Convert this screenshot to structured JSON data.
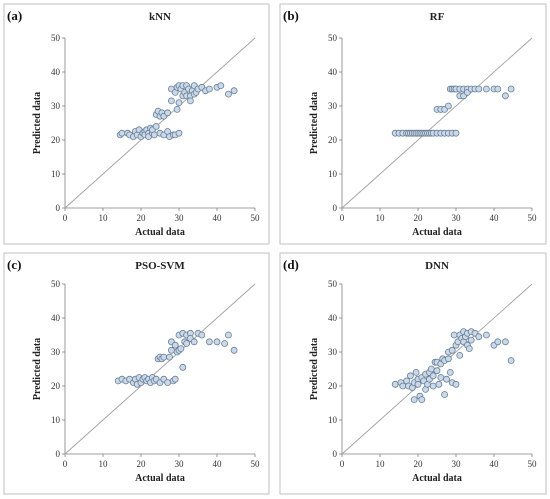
{
  "figure": {
    "background": "#ffffff"
  },
  "style": {
    "marker_fill": "#c9d9ea",
    "marker_stroke": "#6b7f95",
    "diagonal_color": "#a0a0a0",
    "axis_color": "#808080"
  },
  "chart_data": [
    {
      "panel_label": "(a)",
      "type": "scatter",
      "title": "kNN",
      "xlabel": "Actual data",
      "ylabel": "Predicted data",
      "xlim": [
        0,
        50
      ],
      "ylim": [
        0,
        50
      ],
      "xticks": [
        0,
        10,
        20,
        30,
        40,
        50
      ],
      "yticks": [
        0,
        10,
        20,
        30,
        40,
        50
      ],
      "grid": false,
      "reference_line": "y = x",
      "x": [
        14.5,
        15,
        16.5,
        17,
        18,
        18.5,
        19,
        19.5,
        20,
        20.5,
        21,
        21,
        21.5,
        22,
        22,
        22.5,
        23,
        23,
        23.5,
        24,
        24,
        24.5,
        25,
        25,
        25.5,
        26,
        26,
        27,
        27,
        27.5,
        28,
        28,
        28.5,
        29,
        29,
        29.5,
        29.5,
        30,
        30,
        30,
        30.5,
        31,
        31,
        31.5,
        32,
        32,
        32.5,
        33,
        33,
        33.5,
        34,
        34,
        34.5,
        35,
        36,
        37,
        38,
        40,
        41,
        43,
        44.5
      ],
      "y": [
        21.5,
        22,
        22,
        21.5,
        21,
        22.5,
        21.5,
        23,
        21,
        22,
        22.5,
        21.5,
        23,
        22,
        21,
        23.5,
        22,
        23,
        21.5,
        24,
        27.5,
        28.5,
        22,
        27,
        28,
        21.5,
        27,
        22.5,
        28,
        21,
        31.5,
        35,
        21.5,
        34,
        21.5,
        35.5,
        29,
        36,
        22,
        31,
        35,
        33,
        36,
        34,
        36,
        33,
        35,
        33,
        31.5,
        34.5,
        36,
        33.5,
        34,
        35,
        35.5,
        34.5,
        35,
        35.5,
        36,
        33.5,
        34.5
      ]
    },
    {
      "panel_label": "(b)",
      "type": "scatter",
      "title": "RF",
      "xlabel": "Actual data",
      "ylabel": "Predicted data",
      "xlim": [
        0,
        50
      ],
      "ylim": [
        0,
        50
      ],
      "xticks": [
        0,
        10,
        20,
        30,
        40,
        50
      ],
      "yticks": [
        0,
        10,
        20,
        30,
        40,
        50
      ],
      "grid": false,
      "reference_line": "y = x",
      "x": [
        14,
        15,
        16,
        17,
        17.5,
        18,
        18.5,
        19,
        19.5,
        20,
        20.5,
        21,
        21.5,
        22,
        22.5,
        23,
        23.5,
        24,
        25,
        25,
        26,
        26,
        26,
        27,
        27,
        28,
        28,
        28.5,
        29,
        29,
        29.5,
        30,
        30,
        30,
        31,
        31,
        32,
        32,
        33,
        33,
        34,
        35,
        36,
        38,
        40,
        41,
        43,
        44.5
      ],
      "y": [
        22,
        22,
        22,
        22,
        22,
        22,
        22,
        22,
        22,
        22,
        22,
        22,
        22,
        22,
        22,
        22,
        22,
        22,
        22,
        29,
        22,
        29,
        29,
        22,
        29,
        22,
        30,
        35,
        22,
        35,
        35,
        22,
        35,
        35,
        33,
        35,
        33,
        35,
        35,
        34,
        35,
        35,
        35,
        35,
        35,
        35,
        33,
        35
      ]
    },
    {
      "panel_label": "(c)",
      "type": "scatter",
      "title": "PSO-SVM",
      "xlabel": "Actual data",
      "ylabel": "Predicted data",
      "xlim": [
        0,
        50
      ],
      "ylim": [
        0,
        50
      ],
      "xticks": [
        0,
        10,
        20,
        30,
        40,
        50
      ],
      "yticks": [
        0,
        10,
        20,
        30,
        40,
        50
      ],
      "grid": false,
      "reference_line": "y = x",
      "x": [
        14,
        15,
        16,
        17,
        18,
        18.5,
        19,
        19.5,
        20,
        20.5,
        21,
        21.5,
        22,
        22.5,
        23,
        23.5,
        24,
        24.5,
        25,
        25,
        25.5,
        26,
        26,
        27,
        27.5,
        28,
        28,
        28.5,
        29,
        29,
        29.5,
        30,
        30,
        30.5,
        31,
        31,
        31.5,
        32,
        32,
        33,
        33,
        34,
        35,
        36,
        38,
        40,
        42,
        43,
        44.5
      ],
      "y": [
        21.5,
        22,
        21.5,
        22,
        21,
        22,
        20.5,
        22.5,
        21,
        22,
        22.5,
        21.5,
        22,
        21,
        22.5,
        21.5,
        22,
        28,
        28.5,
        21,
        28,
        22,
        28.5,
        21,
        28.5,
        30.5,
        33,
        21.5,
        32,
        22,
        30,
        35,
        30.5,
        31,
        35.5,
        25.5,
        33,
        35,
        32.5,
        35.5,
        34,
        33,
        35.5,
        35,
        33,
        33,
        32.5,
        35,
        30.5
      ]
    },
    {
      "panel_label": "(d)",
      "type": "scatter",
      "title": "DNN",
      "xlabel": "Actual data",
      "ylabel": "Predicted data",
      "xlim": [
        0,
        50
      ],
      "ylim": [
        0,
        50
      ],
      "xticks": [
        0,
        10,
        20,
        30,
        40,
        50
      ],
      "yticks": [
        0,
        10,
        20,
        30,
        40,
        50
      ],
      "grid": false,
      "reference_line": "y = x",
      "x": [
        14,
        15.5,
        16,
        17,
        17.5,
        18,
        18.5,
        19,
        19,
        19.5,
        20,
        20,
        20.5,
        21,
        21,
        21.5,
        22,
        22,
        22.5,
        23,
        23,
        23.5,
        24,
        24,
        24.5,
        25,
        25,
        25.5,
        26,
        26,
        26.5,
        27,
        27,
        27.5,
        28,
        28,
        28.5,
        29,
        29,
        29.5,
        30,
        30,
        30.5,
        31,
        31,
        31.5,
        32,
        32,
        32.5,
        33,
        33,
        33.5,
        34,
        34,
        35,
        36,
        38,
        40,
        41,
        43,
        44.5
      ],
      "y": [
        20.5,
        21,
        20,
        21.5,
        20,
        23,
        19.5,
        16,
        21,
        24,
        22,
        20.5,
        17,
        22.5,
        16,
        21.5,
        23.5,
        19,
        20.5,
        24,
        22,
        25,
        23,
        20,
        27,
        24.5,
        27,
        20.5,
        26.5,
        22.5,
        28,
        27.5,
        17.5,
        22,
        28,
        30,
        24,
        30.5,
        21,
        35,
        32,
        20.5,
        33,
        35,
        29,
        34,
        36,
        33,
        34.5,
        35.5,
        32,
        31,
        36,
        33.5,
        35.5,
        34.5,
        35,
        32,
        33,
        33,
        27.5
      ]
    }
  ]
}
